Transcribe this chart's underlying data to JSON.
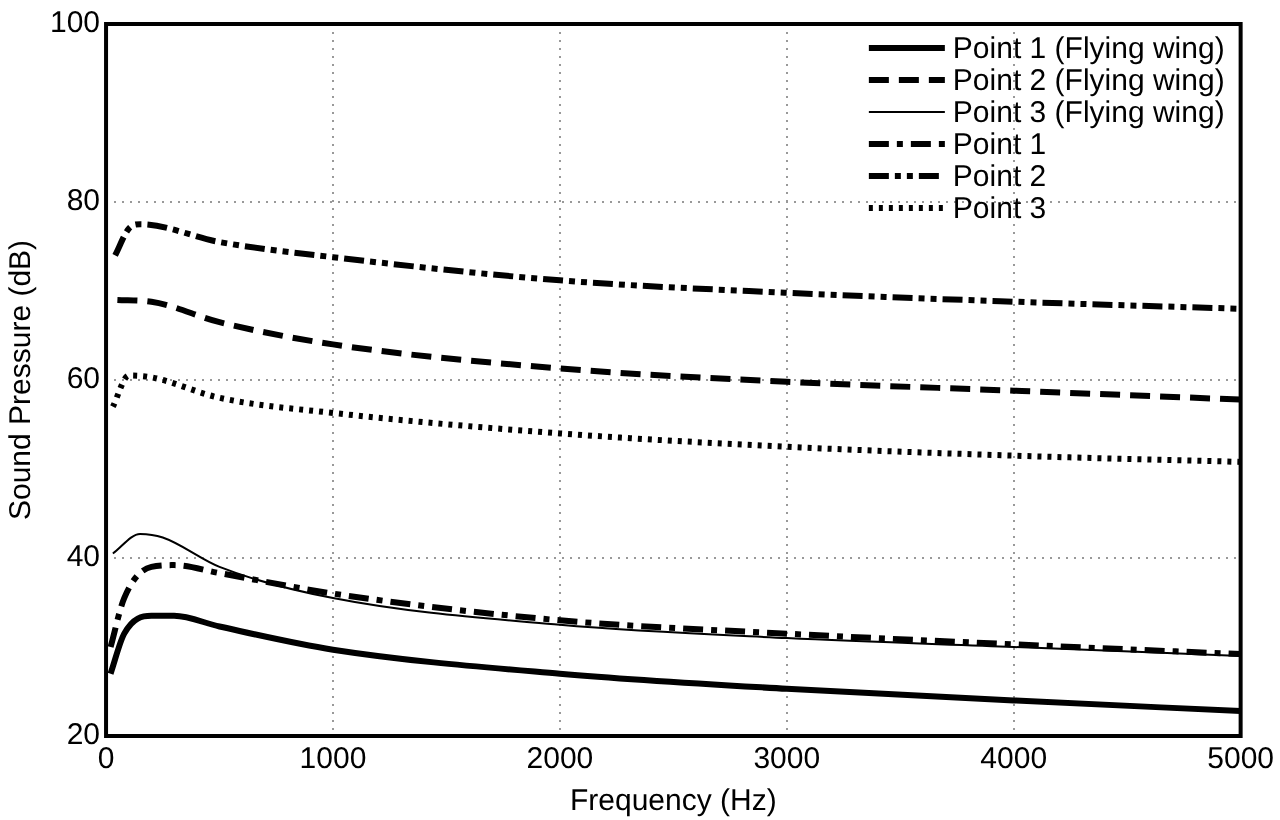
{
  "chart_data": {
    "type": "line",
    "xlabel": "Frequency (Hz)",
    "ylabel": "Sound Pressure (dB)",
    "xlim": [
      0,
      5000
    ],
    "xticks": [
      0,
      1000,
      2000,
      3000,
      4000,
      5000
    ],
    "ylim": [
      20,
      100
    ],
    "yticks": [
      20,
      40,
      60,
      80,
      100
    ],
    "grid": true,
    "legend": "top right",
    "marker": "none",
    "series": [
      {
        "name": "Point 1 (Flying wing)",
        "color": "#000000",
        "line_style": "solid",
        "x": [
          20,
          80,
          200,
          300,
          500,
          1000,
          2000,
          3000,
          4000,
          5000
        ],
        "values": [
          27,
          31.5,
          33.5,
          33.5,
          32.3,
          29.7,
          27,
          25.3,
          24,
          22.8
        ]
      },
      {
        "name": "Point 2 (Flying wing)",
        "color": "#000000",
        "line_style": "dashed",
        "x": [
          50,
          200,
          500,
          1000,
          2000,
          3000,
          4000,
          5000
        ],
        "values": [
          69,
          68.8,
          66.5,
          64,
          61.3,
          59.8,
          58.8,
          57.8
        ]
      },
      {
        "name": "Point 3 (Flying wing)",
        "color": "#000000",
        "line_style": "solid",
        "x": [
          30,
          150,
          250,
          500,
          1000,
          2000,
          3000,
          4000,
          5000
        ],
        "values": [
          40.5,
          42.7,
          42.3,
          39,
          35.5,
          32.5,
          31,
          30,
          29
        ]
      },
      {
        "name": "Point 1",
        "color": "#000000",
        "line_style": "dashdot",
        "x": [
          20,
          80,
          200,
          300,
          500,
          1000,
          2000,
          3000,
          4000,
          5000
        ],
        "values": [
          30,
          35.5,
          39,
          39.2,
          38.3,
          36,
          33,
          31.5,
          30.3,
          29.2
        ]
      },
      {
        "name": "Point 2",
        "color": "#000000",
        "line_style": "dashdotdot",
        "x": [
          40,
          100,
          150,
          500,
          1000,
          2000,
          3000,
          4000,
          5000
        ],
        "values": [
          74,
          77,
          77.5,
          75.5,
          73.8,
          71.2,
          69.8,
          68.8,
          68
        ]
      },
      {
        "name": "Point 3",
        "color": "#000000",
        "line_style": "dotted",
        "x": [
          30,
          100,
          200,
          500,
          1000,
          2000,
          3000,
          4000,
          5000
        ],
        "values": [
          57,
          60.5,
          60.3,
          58,
          56.3,
          54,
          52.5,
          51.5,
          50.8
        ]
      }
    ]
  }
}
